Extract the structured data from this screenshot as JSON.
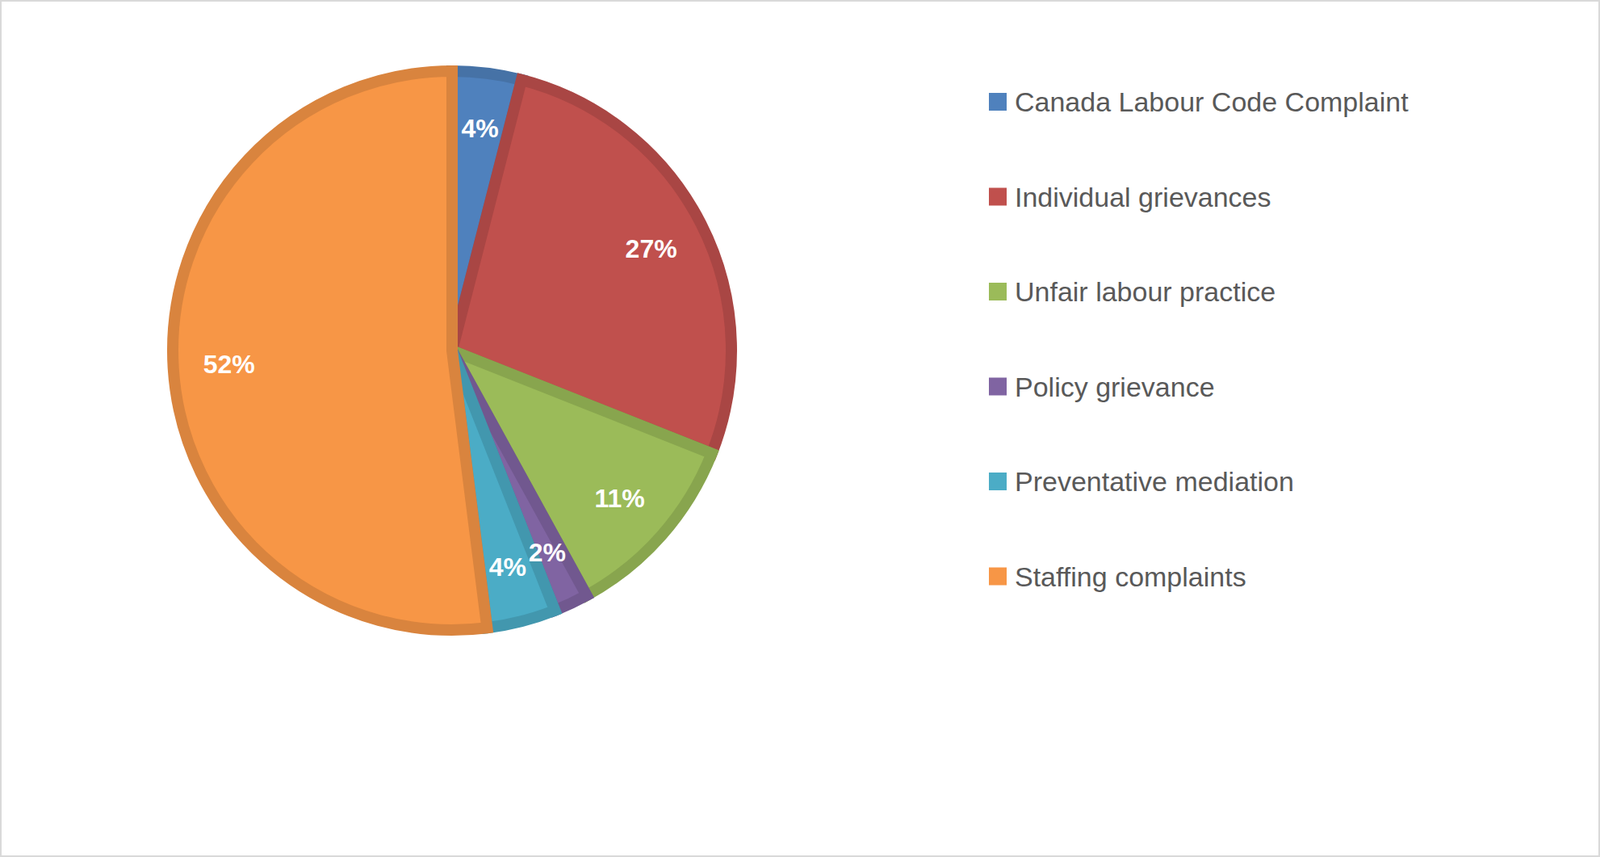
{
  "chart_data": {
    "type": "pie",
    "categories": [
      "Canada Labour Code Complaint",
      "Individual grievances",
      "Unfair labour practice",
      "Policy grievance",
      "Preventative mediation",
      "Staffing complaints"
    ],
    "values": [
      4,
      27,
      11,
      2,
      4,
      52
    ],
    "value_labels": [
      "4%",
      "27%",
      "11%",
      "2%",
      "4%",
      "52%"
    ],
    "colors": [
      "#4f81bd",
      "#c0504d",
      "#9bbb59",
      "#8064a2",
      "#4bacc6",
      "#f79646"
    ],
    "data_labels": true,
    "legend": "right"
  }
}
